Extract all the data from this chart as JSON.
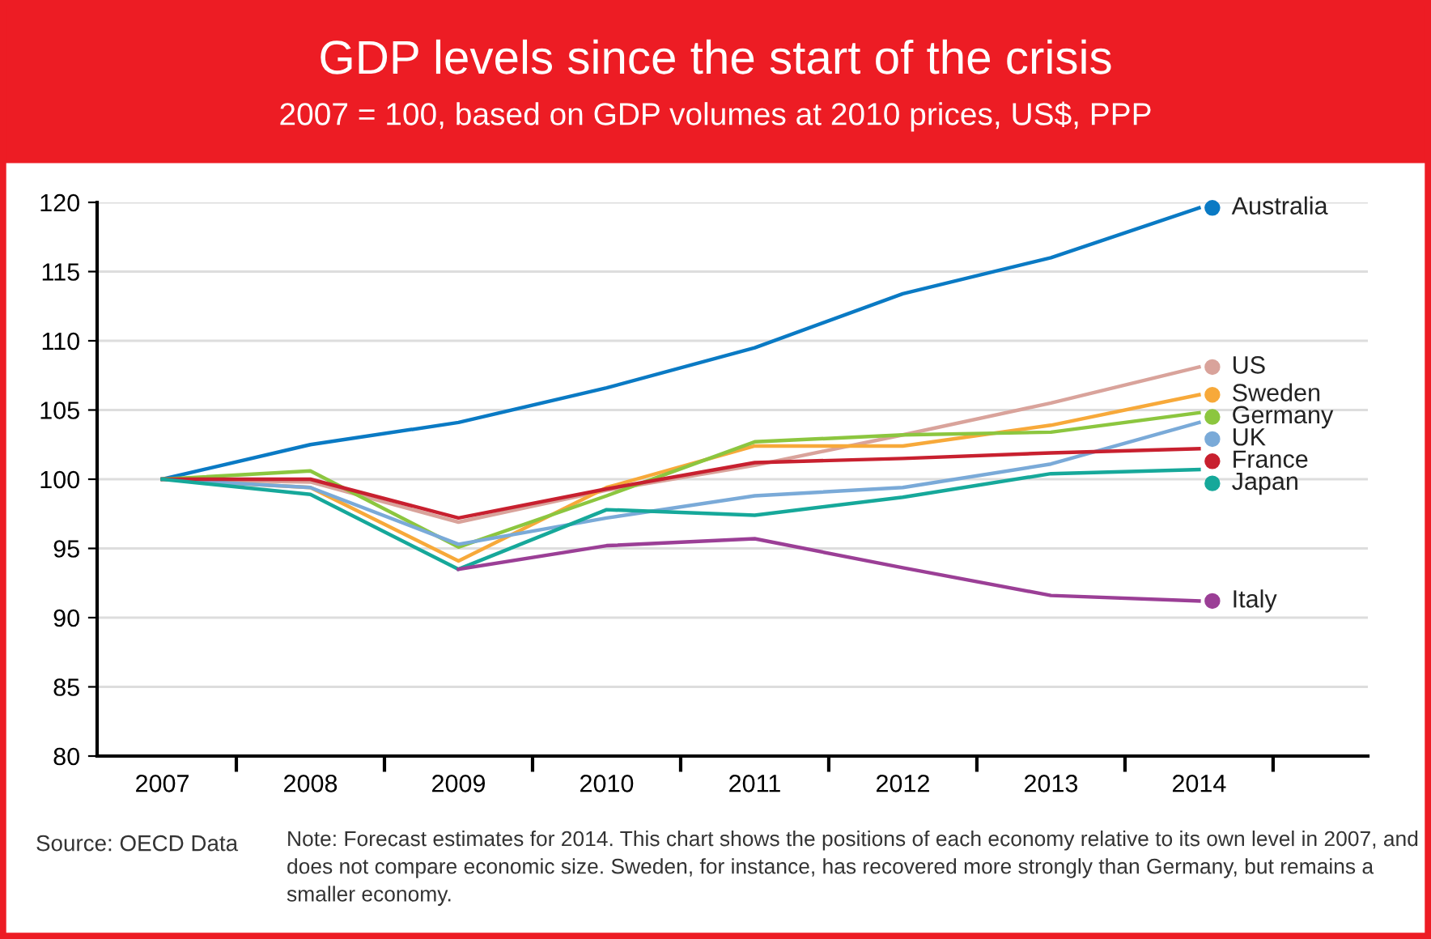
{
  "chart_data": {
    "type": "line",
    "title": "GDP levels since the start of the crisis",
    "subtitle": "2007 = 100, based on GDP volumes at 2010 prices, US$, PPP",
    "categories": [
      "2007",
      "2008",
      "2009",
      "2010",
      "2011",
      "2012",
      "2013",
      "2014"
    ],
    "series": [
      {
        "name": "Australia",
        "color": "#0a7ac4",
        "values": [
          100,
          102.5,
          104.1,
          106.6,
          109.5,
          113.4,
          116.0,
          119.6
        ]
      },
      {
        "name": "US",
        "color": "#d9a39b",
        "values": [
          100,
          99.8,
          96.9,
          99.2,
          101.0,
          103.2,
          105.5,
          108.1
        ]
      },
      {
        "name": "Sweden",
        "color": "#f7a93a",
        "values": [
          100,
          99.4,
          94.1,
          99.4,
          102.4,
          102.4,
          103.9,
          106.1
        ]
      },
      {
        "name": "Germany",
        "color": "#8cc63f",
        "values": [
          100,
          100.6,
          95.1,
          98.8,
          102.7,
          103.2,
          103.4,
          104.8
        ]
      },
      {
        "name": "UK",
        "color": "#7aaad8",
        "values": [
          100,
          99.4,
          95.3,
          97.2,
          98.8,
          99.4,
          101.1,
          104.1
        ]
      },
      {
        "name": "France",
        "color": "#c8202f",
        "values": [
          100,
          100,
          97.2,
          99.3,
          101.2,
          101.5,
          101.9,
          102.2
        ]
      },
      {
        "name": "Japan",
        "color": "#16a89a",
        "values": [
          100,
          98.9,
          93.5,
          97.8,
          97.4,
          98.7,
          100.4,
          100.7
        ]
      },
      {
        "name": "Italy",
        "color": "#9b3f96",
        "values": [
          null,
          null,
          93.5,
          95.2,
          95.7,
          93.6,
          91.6,
          91.2
        ]
      }
    ],
    "ylim": [
      80,
      120
    ],
    "yticks": [
      80,
      85,
      90,
      95,
      100,
      105,
      110,
      115,
      120
    ],
    "grid": "y",
    "legend": "right",
    "annotations": [
      "Source: OECD Data",
      "Note: Forecast estimates for 2014. This chart shows the positions of each economy relative to its own level in 2007, and does not compare economic size. Sweden, for instance, has recovered more strongly than Germany, but remains a smaller economy."
    ]
  }
}
